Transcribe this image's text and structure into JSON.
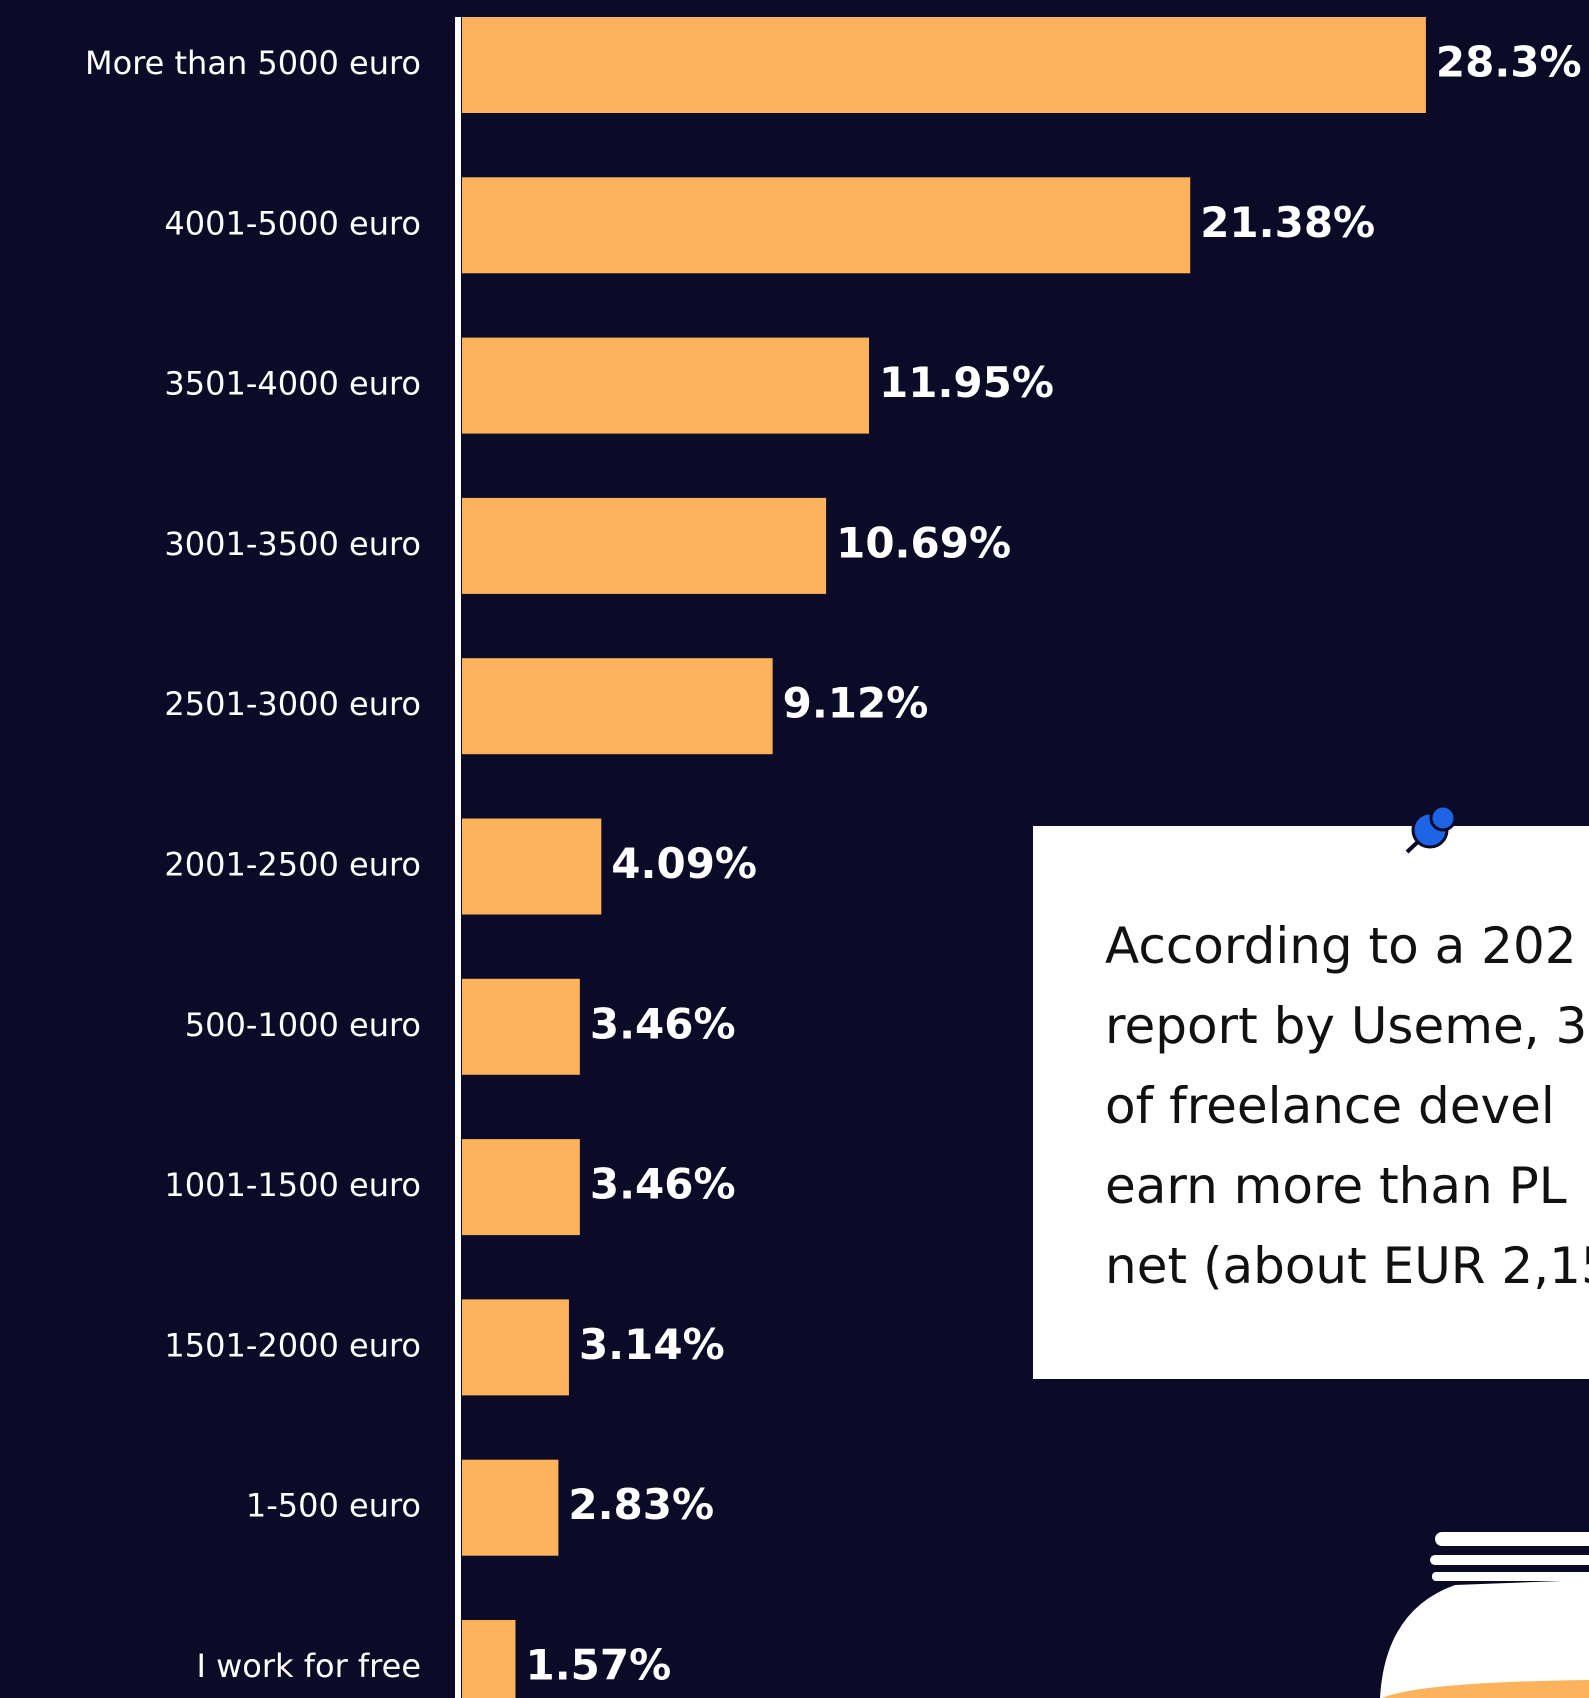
{
  "chart_data": {
    "type": "bar",
    "orientation": "horizontal",
    "color": "#fdb35c",
    "categories": [
      "More than 5000 euro",
      "4001-5000 euro",
      "3501-4000 euro",
      "3001-3500 euro",
      "2501-3000 euro",
      "2001-2500 euro",
      "500-1000 euro",
      "1001-1500 euro",
      "1501-2000 euro",
      "1-500 euro",
      "I work for free"
    ],
    "values": [
      28.3,
      21.38,
      11.95,
      10.69,
      9.12,
      4.09,
      3.46,
      3.46,
      3.14,
      2.83,
      1.57
    ],
    "value_labels": [
      "28.3%",
      "21.38%",
      "11.95%",
      "10.69%",
      "9.12%",
      "4.09%",
      "3.46%",
      "3.46%",
      "3.14%",
      "2.83%",
      "1.57%"
    ]
  },
  "annotation": {
    "lines": [
      "According to a 202",
      "report by Useme, 3",
      "of freelance devel",
      "earn more than PL",
      "net (about EUR 2,15"
    ]
  }
}
